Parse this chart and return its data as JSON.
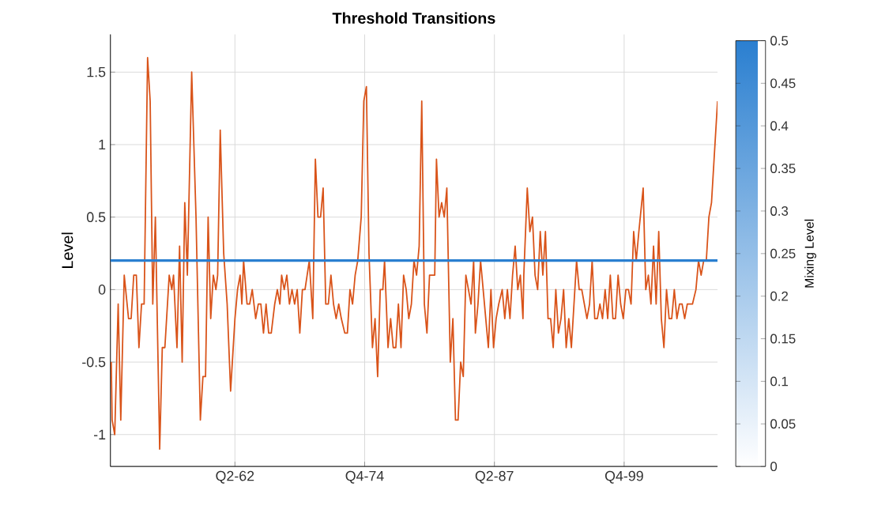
{
  "chart_data": {
    "type": "line",
    "title": "Threshold Transitions",
    "ylabel": "Level",
    "clabel": "Mixing Level",
    "x": [
      "1950-05",
      "1950-06",
      "1950-09",
      "1951-01",
      "1951-04",
      "1951-08",
      "1952-01",
      "1952-04",
      "1952-07",
      "1952-10",
      "1953-01",
      "1953-04",
      "1953-07",
      "1953-11",
      "1954-02",
      "1954-05",
      "1954-08",
      "1955-01",
      "1955-04",
      "1955-07",
      "1955-12",
      "1956-03",
      "1956-05",
      "1956-09",
      "1956-12",
      "1957-03",
      "1957-06",
      "1957-09",
      "1958-02",
      "1958-07",
      "1958-12",
      "1959-03",
      "1959-06",
      "1959-09",
      "1959-12",
      "1960-03",
      "1960-06",
      "1960-08",
      "1960-11",
      "1961-03",
      "1961-07",
      "1961-11",
      "1962-04",
      "1962-07",
      "1962-10",
      "1962-12",
      "1963-02",
      "1963-06",
      "1963-09",
      "1963-12",
      "1964-04",
      "1964-07",
      "1964-10",
      "1965-01",
      "1965-04",
      "1965-07",
      "1965-10",
      "1966-02",
      "1966-05",
      "1966-08",
      "1966-10",
      "1967-01",
      "1967-04",
      "1967-07",
      "1967-10",
      "1968-01",
      "1968-04",
      "1968-07",
      "1968-10",
      "1969-01",
      "1969-06",
      "1969-10",
      "1970-01",
      "1970-04",
      "1970-07",
      "1970-10",
      "1971-01",
      "1971-04",
      "1971-07",
      "1971-10",
      "1972-01",
      "1972-04",
      "1972-07",
      "1972-11",
      "1973-02",
      "1973-05",
      "1973-08",
      "1973-11",
      "1974-02",
      "1974-06",
      "1974-09",
      "1974-12",
      "1975-03",
      "1975-07",
      "1975-10",
      "1976-01",
      "1976-04",
      "1976-07",
      "1976-09",
      "1977-01",
      "1977-04",
      "1977-07",
      "1977-10",
      "1978-01",
      "1978-04",
      "1978-07",
      "1978-10",
      "1979-01",
      "1979-04",
      "1979-07",
      "1979-10",
      "1980-01",
      "1980-04",
      "1980-07",
      "1980-10",
      "1981-01",
      "1981-04",
      "1981-07",
      "1981-09",
      "1981-12",
      "1982-03",
      "1982-06",
      "1982-09",
      "1983-01",
      "1983-04",
      "1983-07",
      "1983-10",
      "1984-01",
      "1984-04",
      "1984-07",
      "1984-10",
      "1985-01",
      "1985-04",
      "1985-06",
      "1985-09",
      "1985-12",
      "1986-03",
      "1986-06",
      "1986-09",
      "1986-12",
      "1987-03",
      "1987-06",
      "1987-09",
      "1988-01",
      "1988-04",
      "1988-07",
      "1988-10",
      "1989-01",
      "1989-04",
      "1989-07",
      "1989-10",
      "1990-01",
      "1990-02",
      "1990-06",
      "1990-09",
      "1990-12",
      "1991-03",
      "1991-06",
      "1991-09",
      "1991-12",
      "1992-03",
      "1992-06",
      "1992-09",
      "1992-12",
      "1993-03",
      "1993-06",
      "1993-09",
      "1993-12",
      "1994-03",
      "1994-06",
      "1994-09",
      "1994-12",
      "1995-03",
      "1995-06",
      "1995-09",
      "1995-12",
      "1996-03",
      "1996-06",
      "1996-09",
      "1996-12",
      "1997-03",
      "1997-06",
      "1997-09",
      "1997-12",
      "1998-03",
      "1998-06",
      "1998-09",
      "1998-12",
      "1999-03",
      "1999-06",
      "1999-09",
      "1999-12",
      "2000-03",
      "2000-06",
      "2000-09",
      "2000-12",
      "2001-03",
      "2001-08",
      "2001-11",
      "2002-02",
      "2002-05",
      "2002-08",
      "2002-11",
      "2003-02",
      "2003-05",
      "2003-08",
      "2003-11",
      "2004-02",
      "2004-05",
      "2004-08",
      "2004-11",
      "2005-02",
      "2005-05",
      "2005-08",
      "2005-11",
      "2006-05",
      "2006-09",
      "2006-12",
      "2007-03",
      "2007-06",
      "2007-09",
      "2007-12",
      "2008-03",
      "2008-06",
      "2008-10"
    ],
    "series": [
      {
        "color": "#d95319",
        "values": [
          -0.5,
          -0.9,
          -1.0,
          -0.1,
          -0.9,
          0.1,
          -0.2,
          -0.2,
          0.1,
          0.1,
          -0.4,
          -0.1,
          -0.1,
          1.6,
          1.3,
          -0.1,
          0.5,
          -1.1,
          -0.4,
          -0.4,
          0.1,
          0.0,
          0.1,
          -0.4,
          0.3,
          -0.5,
          0.6,
          0.1,
          1.5,
          0.5,
          -0.9,
          -0.6,
          -0.6,
          0.5,
          -0.2,
          0.1,
          0.0,
          0.1,
          1.1,
          0.25,
          -0.1,
          -0.7,
          -0.2,
          0.0,
          0.1,
          -0.1,
          0.2,
          -0.1,
          -0.1,
          0.0,
          -0.2,
          -0.1,
          -0.1,
          -0.3,
          -0.1,
          -0.3,
          -0.3,
          -0.1,
          0.0,
          -0.1,
          0.1,
          0.0,
          0.1,
          -0.1,
          0.0,
          -0.1,
          0.0,
          -0.3,
          0.0,
          0.0,
          0.2,
          -0.2,
          0.9,
          0.5,
          0.5,
          0.7,
          -0.1,
          -0.1,
          0.1,
          -0.1,
          -0.2,
          -0.1,
          -0.2,
          -0.3,
          -0.3,
          0.0,
          -0.1,
          0.1,
          0.2,
          0.5,
          1.3,
          1.4,
          0.25,
          -0.4,
          -0.2,
          -0.6,
          0.0,
          0.0,
          0.2,
          -0.4,
          -0.2,
          -0.4,
          -0.4,
          -0.1,
          -0.4,
          0.1,
          0.0,
          -0.2,
          -0.1,
          0.2,
          0.1,
          0.3,
          1.3,
          -0.1,
          -0.3,
          0.1,
          0.1,
          0.1,
          0.9,
          0.5,
          0.6,
          0.5,
          0.7,
          -0.5,
          -0.2,
          -0.9,
          -0.9,
          -0.5,
          -0.6,
          0.1,
          0.0,
          -0.1,
          0.2,
          -0.3,
          -0.1,
          0.2,
          0.0,
          -0.2,
          -0.4,
          0.0,
          -0.4,
          -0.2,
          -0.1,
          0.0,
          -0.2,
          0.0,
          -0.2,
          0.1,
          0.3,
          0.0,
          0.1,
          -0.2,
          0.1,
          0.7,
          0.4,
          0.5,
          0.1,
          0.0,
          0.4,
          0.1,
          0.4,
          -0.2,
          -0.2,
          -0.4,
          0.0,
          -0.3,
          -0.2,
          0.0,
          -0.4,
          -0.2,
          -0.4,
          -0.1,
          0.2,
          0.0,
          0.0,
          -0.1,
          -0.2,
          -0.1,
          0.2,
          -0.2,
          -0.2,
          -0.1,
          -0.2,
          0.0,
          -0.2,
          0.1,
          -0.2,
          -0.2,
          0.1,
          -0.1,
          -0.2,
          0.0,
          0.0,
          -0.1,
          0.4,
          0.2,
          0.4,
          0.7,
          0.0,
          0.1,
          -0.1,
          0.3,
          -0.1,
          0.4,
          -0.2,
          -0.4,
          0.0,
          -0.2,
          -0.2,
          0.0,
          -0.2,
          -0.1,
          -0.1,
          -0.2,
          -0.1,
          -0.1,
          0.0,
          0.2,
          0.1,
          0.2,
          0.2,
          0.5,
          0.6,
          0.9,
          1.3
        ]
      }
    ],
    "xlim": [
      "1950-04",
      "2008-10"
    ],
    "xticks": [
      {
        "value": "1962-04",
        "label": "Q2-62"
      },
      {
        "value": "1974-10",
        "label": "Q4-74"
      },
      {
        "value": "1987-04",
        "label": "Q2-87"
      },
      {
        "value": "1999-10",
        "label": "Q4-99"
      }
    ],
    "ylim": [
      -1.22,
      1.76
    ],
    "yticks": [
      -1,
      -0.5,
      0,
      0.5,
      1,
      1.5
    ],
    "ref_lines": [
      {
        "axis": "y",
        "value": 0.2,
        "color": "#2a7fd0"
      }
    ],
    "clim": [
      0,
      0.5
    ],
    "cticks": [
      0,
      0.05,
      0.1,
      0.15,
      0.2,
      0.25,
      0.3,
      0.35,
      0.4,
      0.45,
      0.5
    ],
    "grid": true
  }
}
